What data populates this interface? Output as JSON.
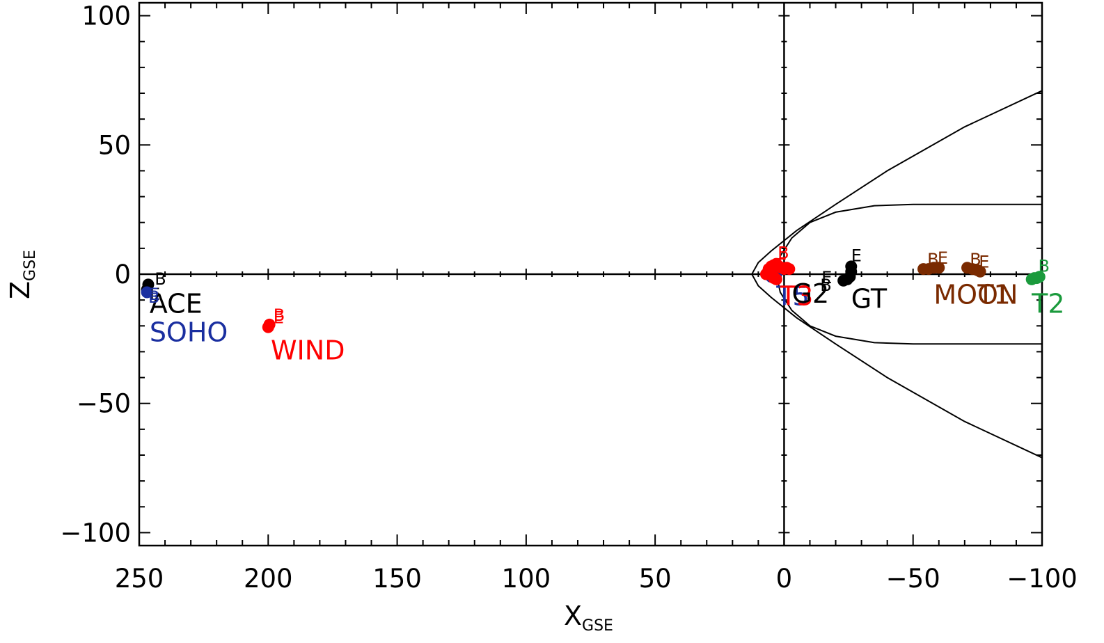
{
  "chart_data": {
    "type": "scatter",
    "xlabel": "X",
    "xlabel_sub": "GSE",
    "ylabel": "Z",
    "ylabel_sub": "GSE",
    "xlim": [
      250,
      -100
    ],
    "ylim": [
      -105,
      105
    ],
    "x_ticks": [
      {
        "value": 250,
        "label": "250"
      },
      {
        "value": 200,
        "label": "200"
      },
      {
        "value": 150,
        "label": "150"
      },
      {
        "value": 100,
        "label": "100"
      },
      {
        "value": 50,
        "label": "50"
      },
      {
        "value": 0,
        "label": "0"
      },
      {
        "value": -50,
        "label": "−50"
      },
      {
        "value": -100,
        "label": "−100"
      }
    ],
    "y_ticks": [
      {
        "value": 100,
        "label": "100"
      },
      {
        "value": 50,
        "label": "50"
      },
      {
        "value": 0,
        "label": "0"
      },
      {
        "value": -50,
        "label": "−50"
      },
      {
        "value": -100,
        "label": "−100"
      }
    ],
    "boundaries": [
      {
        "name": "bow-shock",
        "color": "#000000",
        "points": [
          [
            -100,
            71
          ],
          [
            -70,
            57
          ],
          [
            -40,
            40
          ],
          [
            -20,
            27
          ],
          [
            -5,
            17
          ],
          [
            5,
            9
          ],
          [
            10,
            4.5
          ],
          [
            12.5,
            0
          ],
          [
            10,
            -4.5
          ],
          [
            5,
            -9
          ],
          [
            -5,
            -17
          ],
          [
            -20,
            -27
          ],
          [
            -40,
            -40
          ],
          [
            -70,
            -57
          ],
          [
            -100,
            -71
          ]
        ]
      },
      {
        "name": "magnetopause",
        "color": "#000000",
        "points": [
          [
            -100,
            27
          ],
          [
            -50,
            27
          ],
          [
            -35,
            26.5
          ],
          [
            -20,
            24
          ],
          [
            -10,
            20
          ],
          [
            -3,
            14
          ],
          [
            1.5,
            7
          ],
          [
            3,
            0
          ],
          [
            1.5,
            -7
          ],
          [
            -3,
            -14
          ],
          [
            -10,
            -20
          ],
          [
            -20,
            -24
          ],
          [
            -35,
            -26.5
          ],
          [
            -50,
            -27
          ],
          [
            -100,
            -27
          ]
        ]
      }
    ],
    "series": [
      {
        "name": "ACE",
        "color": "#000000",
        "points": [
          [
            247,
            -6
          ],
          [
            246.5,
            -4
          ]
        ],
        "labels": [
          {
            "text": "B",
            "x": 244,
            "y": -4
          },
          {
            "text": "E",
            "x": 246,
            "y": -10
          },
          {
            "text": "ACE",
            "x": 246,
            "y": -15
          }
        ]
      },
      {
        "name": "SOHO",
        "color": "#1a2fa0",
        "points": [
          [
            247,
            -7
          ]
        ],
        "labels": [
          {
            "text": "B",
            "x": 246.5,
            "y": -11
          },
          {
            "text": "E",
            "x": 246.5,
            "y": -10
          },
          {
            "text": "SOHO",
            "x": 246,
            "y": -26
          }
        ]
      },
      {
        "name": "WIND",
        "color": "#ff0000",
        "points": [
          [
            200,
            -20.5
          ],
          [
            199.5,
            -19.5
          ]
        ],
        "labels": [
          {
            "text": "B",
            "x": 198,
            "y": -18
          },
          {
            "text": "E",
            "x": 198,
            "y": -19
          },
          {
            "text": "WIND",
            "x": 199,
            "y": -33
          }
        ]
      },
      {
        "name": "T5",
        "color": "#1a2fa0",
        "points": [
          [
            6,
            1.5
          ],
          [
            5,
            -1
          ],
          [
            4,
            2
          ],
          [
            3,
            0
          ]
        ],
        "labels": [
          {
            "text": "T5",
            "x": 3,
            "y": -12
          }
        ]
      },
      {
        "name": "T3",
        "color": "#ff0000",
        "points": [
          [
            7,
            0
          ],
          [
            6,
            2
          ],
          [
            5,
            3
          ],
          [
            4,
            3.5
          ],
          [
            3,
            4
          ],
          [
            2,
            3
          ],
          [
            1,
            2.5
          ],
          [
            0,
            2
          ],
          [
            -1,
            2.5
          ],
          [
            -2,
            2
          ],
          [
            4,
            -1
          ],
          [
            3,
            -2
          ],
          [
            4,
            -1.5
          ]
        ],
        "labels": [
          {
            "text": "B",
            "x": 2.5,
            "y": 6
          },
          {
            "text": "E",
            "x": 3,
            "y": 1.5
          },
          {
            "text": "T3",
            "x": 1.5,
            "y": -12
          }
        ]
      },
      {
        "name": "G2",
        "color": "#000000",
        "points": [],
        "labels": [
          {
            "text": "B",
            "x": -14,
            "y": -6.5
          },
          {
            "text": "E",
            "x": -14.5,
            "y": -3.5
          },
          {
            "text": "G2",
            "x": -3,
            "y": -11
          }
        ]
      },
      {
        "name": "GT",
        "color": "#000000",
        "points": [
          [
            -26,
            3
          ],
          [
            -26,
            1
          ],
          [
            -25.5,
            -1
          ],
          [
            -24.5,
            -2
          ],
          [
            -23,
            -2.5
          ]
        ],
        "labels": [
          {
            "text": "E",
            "x": -26,
            "y": 5
          },
          {
            "text": "GT",
            "x": -26,
            "y": -13
          }
        ]
      },
      {
        "name": "MOON",
        "color": "#7a2a00",
        "points": [
          [
            -54,
            2
          ],
          [
            -56,
            2
          ],
          [
            -58,
            2.5
          ],
          [
            -60,
            2.5
          ],
          [
            -71,
            2.5
          ],
          [
            -73,
            2
          ],
          [
            -75,
            1.5
          ],
          [
            -76,
            1
          ]
        ],
        "labels": [
          {
            "text": "B",
            "x": -55.5,
            "y": 3.5
          },
          {
            "text": "E",
            "x": -59.5,
            "y": 4
          },
          {
            "text": "B",
            "x": -72,
            "y": 3.5
          },
          {
            "text": "E",
            "x": -75.5,
            "y": 2.5
          },
          {
            "text": "MOON",
            "x": -58,
            "y": -11.5
          }
        ]
      },
      {
        "name": "T2",
        "color": "#1a9a3c",
        "points": [
          [
            -96,
            -2
          ],
          [
            -97,
            -1.5
          ],
          [
            -98,
            -1.5
          ],
          [
            -99,
            -1
          ]
        ],
        "labels": [
          {
            "text": "B",
            "x": -98.5,
            "y": 1
          },
          {
            "text": "T2",
            "x": -96,
            "y": -15
          }
        ]
      }
    ],
    "extra_labels": [
      {
        "text": "T1",
        "color": "#7a2a00",
        "x": -75,
        "y": -11.5
      }
    ],
    "grid": false,
    "legend": "none"
  }
}
